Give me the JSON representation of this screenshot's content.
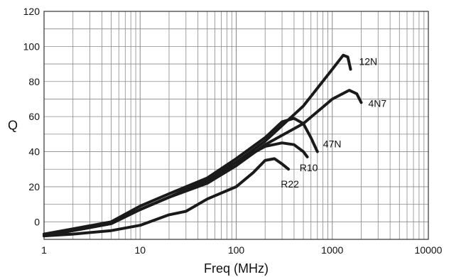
{
  "chart_data": {
    "type": "line",
    "title": "",
    "xlabel": "Freq (MHz)",
    "ylabel": "Q",
    "xscale": "log",
    "xlim": [
      1,
      10000
    ],
    "ylim": [
      -10,
      120
    ],
    "grid": true,
    "x_ticks": [
      "1",
      "10",
      "100",
      "1000",
      "10000"
    ],
    "y_ticks": [
      "0",
      "20",
      "40",
      "60",
      "80",
      "100",
      "120"
    ],
    "series": [
      {
        "name": "12N",
        "points": [
          [
            1,
            -8
          ],
          [
            2,
            -5
          ],
          [
            5,
            -1
          ],
          [
            10,
            7
          ],
          [
            20,
            14
          ],
          [
            50,
            23
          ],
          [
            100,
            34
          ],
          [
            200,
            46
          ],
          [
            500,
            66
          ],
          [
            1000,
            87
          ],
          [
            1300,
            95
          ],
          [
            1450,
            94
          ],
          [
            1550,
            87
          ]
        ]
      },
      {
        "name": "4N7",
        "points": [
          [
            1,
            -8
          ],
          [
            2,
            -5
          ],
          [
            5,
            -1
          ],
          [
            10,
            7
          ],
          [
            20,
            14
          ],
          [
            50,
            22
          ],
          [
            100,
            32
          ],
          [
            200,
            44
          ],
          [
            500,
            56
          ],
          [
            1000,
            70
          ],
          [
            1500,
            75
          ],
          [
            1800,
            73
          ],
          [
            2000,
            68
          ]
        ]
      },
      {
        "name": "47N",
        "points": [
          [
            1,
            -7
          ],
          [
            2,
            -4
          ],
          [
            5,
            0
          ],
          [
            10,
            9
          ],
          [
            20,
            16
          ],
          [
            50,
            25
          ],
          [
            100,
            36
          ],
          [
            200,
            48
          ],
          [
            300,
            57
          ],
          [
            400,
            59
          ],
          [
            500,
            56
          ],
          [
            600,
            48
          ],
          [
            700,
            40
          ]
        ]
      },
      {
        "name": "R10",
        "points": [
          [
            1,
            -7
          ],
          [
            2,
            -5
          ],
          [
            5,
            -1
          ],
          [
            10,
            7
          ],
          [
            20,
            14
          ],
          [
            50,
            24
          ],
          [
            100,
            34
          ],
          [
            200,
            43
          ],
          [
            300,
            45
          ],
          [
            400,
            44
          ],
          [
            500,
            40
          ],
          [
            550,
            37
          ]
        ]
      },
      {
        "name": "R22",
        "points": [
          [
            1,
            -8
          ],
          [
            2,
            -7
          ],
          [
            5,
            -5
          ],
          [
            10,
            -2
          ],
          [
            20,
            4
          ],
          [
            30,
            6
          ],
          [
            50,
            13
          ],
          [
            100,
            20
          ],
          [
            150,
            28
          ],
          [
            200,
            35
          ],
          [
            250,
            36
          ],
          [
            300,
            33
          ],
          [
            350,
            30
          ]
        ]
      }
    ]
  }
}
